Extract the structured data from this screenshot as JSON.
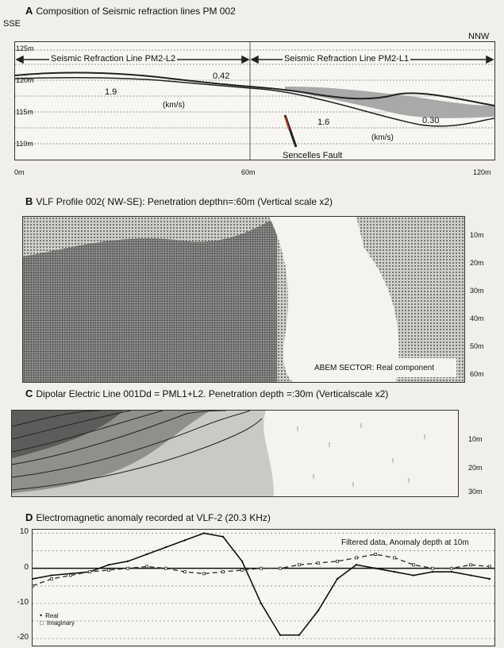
{
  "panel_a": {
    "letter": "A",
    "title": "Composition of Seismic refraction lines  PM 002",
    "dir_left": "SSE",
    "dir_right": "NNW",
    "line_left": "Seismic Refraction Line PM2-L2",
    "line_right": "Seismic Refraction Line PM2-L1",
    "y_ticks": [
      "125m",
      "120m",
      "115m",
      "110m"
    ],
    "x_ticks": [
      "0m",
      "60m",
      "120m"
    ],
    "vel_1": "1.9",
    "vel_2": "0.42",
    "vel_3": "1.6",
    "vel_4": "0.30",
    "unit_1": "(km/s)",
    "unit_2": "(km/s)",
    "fault": "Sencelles Fault"
  },
  "panel_b": {
    "letter": "B",
    "title": "VLF Profile 002( NW-SE): Penetration depthn=:60m (Vertical scale x2)",
    "depth_ticks": [
      "10m",
      "20m",
      "30m",
      "40m",
      "50m",
      "60m"
    ],
    "sector_label": "ABEM SECTOR: Real component"
  },
  "panel_c": {
    "letter": "C",
    "title": "Dipolar Electric Line  001Dd = PML1+L2. Penetration depth =:30m (Verticalscale  x2)",
    "depth_ticks": [
      "10m",
      "20m",
      "30m"
    ]
  },
  "panel_d": {
    "letter": "D",
    "title": "Electromagnetic anomaly recorded at VLF-2  (20.3 KHz)",
    "note": "Filtered data,  Anomaly depth at 10m",
    "legend_real": "Real",
    "legend_imag": "Imaginary"
  },
  "chart_data": {
    "type": "line",
    "title": "Electromagnetic anomaly recorded at VLF-2  (20.3 KHz)",
    "ylim": [
      -22,
      11
    ],
    "y_ticks": [
      10,
      0,
      -10,
      -20
    ],
    "x": [
      0,
      5,
      10,
      15,
      20,
      25,
      30,
      35,
      40,
      45,
      50,
      55,
      60,
      65,
      70,
      75,
      80,
      85,
      90,
      95,
      100,
      105,
      110,
      115,
      120
    ],
    "series": [
      {
        "name": "Real",
        "values": [
          -3,
          -2,
          -1.5,
          -1,
          1,
          2,
          4,
          6,
          8,
          10,
          9,
          2,
          -10,
          -19,
          -19,
          -12,
          -3,
          1,
          0,
          -1,
          -2,
          -1,
          -1,
          -2,
          -3
        ]
      },
      {
        "name": "Imaginary",
        "values": [
          -5,
          -3,
          -2,
          -1,
          -0.5,
          0,
          0.5,
          0,
          -1,
          -1.5,
          -1,
          -0.5,
          0,
          0,
          1,
          1.5,
          2,
          3,
          4,
          3,
          1,
          0,
          0,
          1,
          0.5
        ]
      }
    ]
  }
}
